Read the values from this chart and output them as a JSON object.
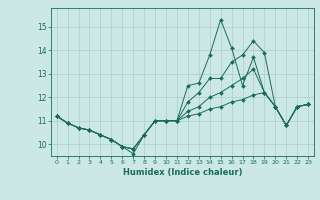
{
  "xlabel": "Humidex (Indice chaleur)",
  "bg_color": "#cce8e6",
  "line_color": "#1a6b5a",
  "grid_color": "#aacfcc",
  "xlim": [
    -0.5,
    23.5
  ],
  "ylim": [
    9.5,
    15.8
  ],
  "yticks": [
    10,
    11,
    12,
    13,
    14,
    15
  ],
  "xticks": [
    0,
    1,
    2,
    3,
    4,
    5,
    6,
    7,
    8,
    9,
    10,
    11,
    12,
    13,
    14,
    15,
    16,
    17,
    18,
    19,
    20,
    21,
    22,
    23
  ],
  "series": [
    [
      11.2,
      10.9,
      10.7,
      10.6,
      10.4,
      10.2,
      9.9,
      9.6,
      10.4,
      11.0,
      11.0,
      11.0,
      12.5,
      12.6,
      13.8,
      15.3,
      14.1,
      12.5,
      13.7,
      12.2,
      11.6,
      10.8,
      11.6,
      11.7
    ],
    [
      11.2,
      10.9,
      10.7,
      10.6,
      10.4,
      10.2,
      9.9,
      9.8,
      10.4,
      11.0,
      11.0,
      11.0,
      11.8,
      12.2,
      12.8,
      12.8,
      13.5,
      13.8,
      14.4,
      13.9,
      11.6,
      10.8,
      11.6,
      11.7
    ],
    [
      11.2,
      10.9,
      10.7,
      10.6,
      10.4,
      10.2,
      9.9,
      9.8,
      10.4,
      11.0,
      11.0,
      11.0,
      11.4,
      11.6,
      12.0,
      12.2,
      12.5,
      12.8,
      13.2,
      12.2,
      11.6,
      10.8,
      11.6,
      11.7
    ],
    [
      11.2,
      10.9,
      10.7,
      10.6,
      10.4,
      10.2,
      9.9,
      9.8,
      10.4,
      11.0,
      11.0,
      11.0,
      11.2,
      11.3,
      11.5,
      11.6,
      11.8,
      11.9,
      12.1,
      12.2,
      11.6,
      10.8,
      11.6,
      11.7
    ]
  ]
}
